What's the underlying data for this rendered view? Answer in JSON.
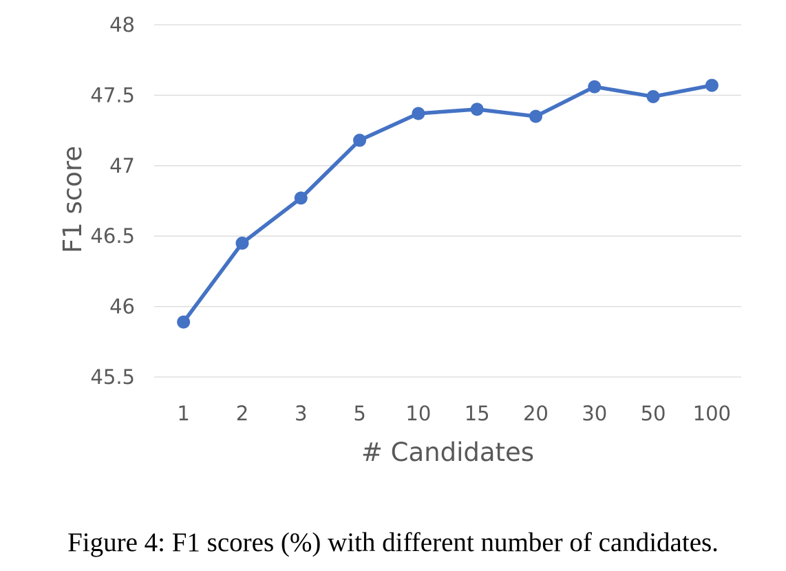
{
  "caption": "Figure 4: F1 scores (%) with different number of candidates.",
  "chart_data": {
    "type": "line",
    "title": "",
    "xlabel": "# Candidates",
    "ylabel": "F1 score",
    "categories": [
      "1",
      "2",
      "3",
      "5",
      "10",
      "15",
      "20",
      "30",
      "50",
      "100"
    ],
    "series": [
      {
        "values": [
          45.89,
          46.45,
          46.77,
          47.18,
          47.37,
          47.4,
          47.35,
          47.56,
          47.49,
          47.57
        ],
        "color": "#4472c4"
      }
    ],
    "ylim": [
      45.5,
      48
    ],
    "yticks": [
      "45.5",
      "46",
      "46.5",
      "47",
      "47.5",
      "48"
    ],
    "grid": "horizontal",
    "legend": "none"
  }
}
